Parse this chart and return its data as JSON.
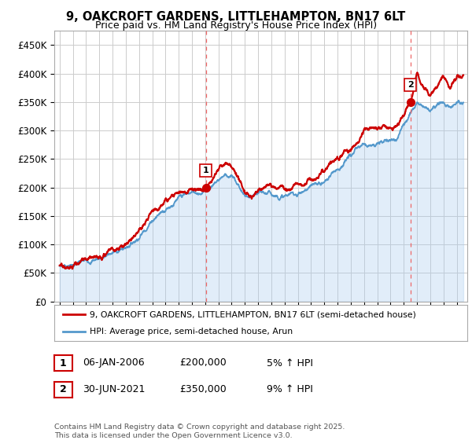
{
  "title_line1": "9, OAKCROFT GARDENS, LITTLEHAMPTON, BN17 6LT",
  "title_line2": "Price paid vs. HM Land Registry's House Price Index (HPI)",
  "ylim": [
    0,
    475000
  ],
  "yticks": [
    0,
    50000,
    100000,
    150000,
    200000,
    250000,
    300000,
    350000,
    400000,
    450000
  ],
  "ytick_labels": [
    "£0",
    "£50K",
    "£100K",
    "£150K",
    "£200K",
    "£250K",
    "£300K",
    "£350K",
    "£400K",
    "£450K"
  ],
  "sale1_t": 2006.04,
  "sale1_price": 200000,
  "sale2_t": 2021.5,
  "sale2_price": 350000,
  "legend_line1": "9, OAKCROFT GARDENS, LITTLEHAMPTON, BN17 6LT (semi-detached house)",
  "legend_line2": "HPI: Average price, semi-detached house, Arun",
  "table_row1": [
    "1",
    "06-JAN-2006",
    "£200,000",
    "5% ↑ HPI"
  ],
  "table_row2": [
    "2",
    "30-JUN-2021",
    "£350,000",
    "9% ↑ HPI"
  ],
  "footnote": "Contains HM Land Registry data © Crown copyright and database right 2025.\nThis data is licensed under the Open Government Licence v3.0.",
  "line_color_red": "#cc0000",
  "line_color_blue": "#5599cc",
  "fill_color_blue": "#aaccee",
  "background_color": "#ffffff",
  "grid_color": "#cccccc",
  "hpi_t": [
    1995,
    1996,
    1997,
    1998,
    1999,
    2000,
    2001,
    2002,
    2003,
    2004,
    2005,
    2006,
    2007,
    2007.5,
    2008,
    2008.5,
    2009,
    2009.5,
    2010,
    2011,
    2012,
    2013,
    2014,
    2015,
    2016,
    2017,
    2017.5,
    2018,
    2018.5,
    2019,
    2019.5,
    2020,
    2020.5,
    2021,
    2021.5,
    2022,
    2022.5,
    2023,
    2023.5,
    2024,
    2024.5,
    2025
  ],
  "hpi_v": [
    62000,
    65000,
    70000,
    77000,
    85000,
    95000,
    115000,
    145000,
    165000,
    180000,
    190000,
    195000,
    215000,
    225000,
    220000,
    205000,
    185000,
    180000,
    185000,
    188000,
    185000,
    190000,
    200000,
    210000,
    235000,
    255000,
    265000,
    275000,
    278000,
    278000,
    280000,
    282000,
    290000,
    310000,
    335000,
    355000,
    345000,
    340000,
    345000,
    350000,
    345000,
    350000
  ],
  "red_t": [
    1995,
    1996,
    1997,
    1998,
    1999,
    2000,
    2001,
    2002,
    2003,
    2004,
    2005,
    2006.04,
    2007,
    2007.5,
    2008,
    2008.5,
    2009,
    2009.5,
    2010,
    2011,
    2012,
    2013,
    2014,
    2015,
    2016,
    2017,
    2017.5,
    2018,
    2018.5,
    2019,
    2019.5,
    2020,
    2020.5,
    2021,
    2021.5,
    2022,
    2022.5,
    2023,
    2023.5,
    2024,
    2024.5,
    2025
  ],
  "red_v": [
    63000,
    66000,
    72000,
    79000,
    88000,
    98000,
    120000,
    152000,
    172000,
    185000,
    196000,
    200000,
    233000,
    242000,
    237000,
    220000,
    195000,
    188000,
    197000,
    205000,
    200000,
    205000,
    218000,
    228000,
    255000,
    270000,
    278000,
    293000,
    302000,
    303000,
    305000,
    305000,
    310000,
    325000,
    350000,
    400000,
    375000,
    368000,
    378000,
    395000,
    378000,
    390000
  ],
  "xlim_left": 1994.6,
  "xlim_right": 2025.8
}
